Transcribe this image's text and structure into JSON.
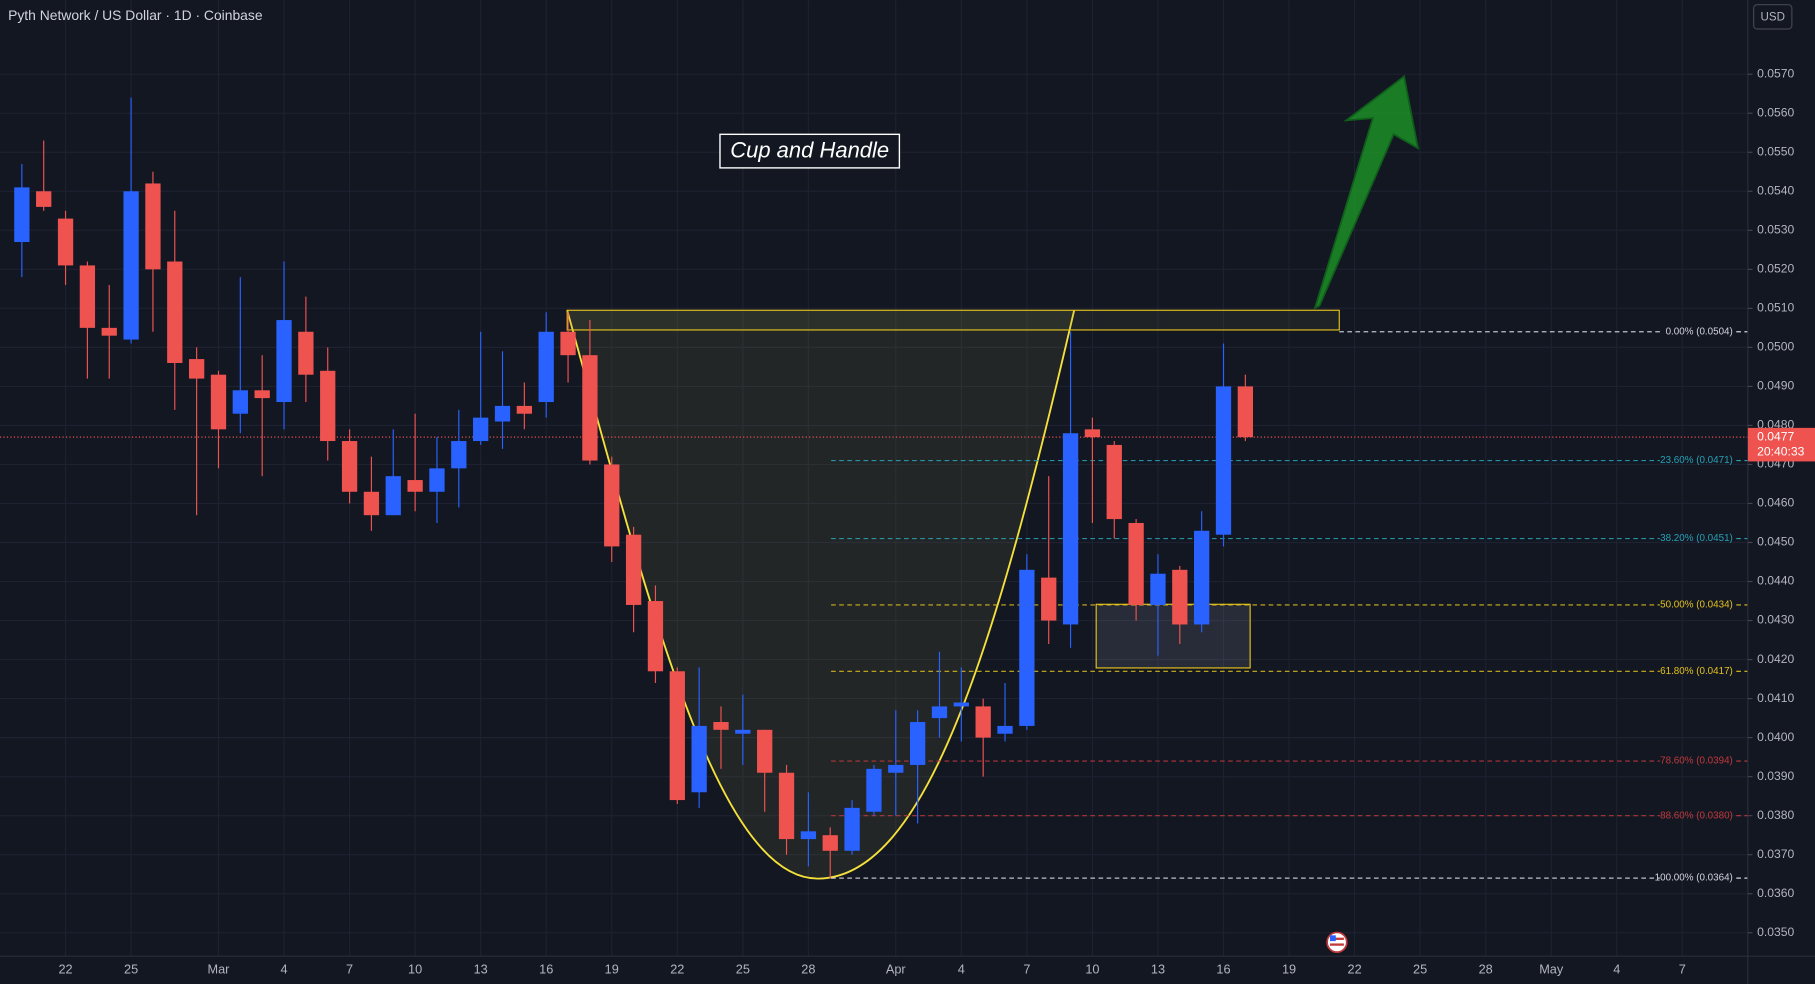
{
  "chart_data": {
    "type": "candlestick",
    "title": "Pyth Network / US Dollar · 1D · Coinbase",
    "currency": "USD",
    "annotation": "Cup and Handle",
    "up_color": "#2962ff",
    "down_color": "#ef5350",
    "grid": true,
    "x": [
      "02-20",
      "02-21",
      "02-22",
      "02-23",
      "02-24",
      "02-25",
      "02-26",
      "02-27",
      "02-28",
      "03-01",
      "03-02",
      "03-03",
      "03-04",
      "03-05",
      "03-06",
      "03-07",
      "03-08",
      "03-09",
      "03-10",
      "03-11",
      "03-12",
      "03-13",
      "03-14",
      "03-15",
      "03-16",
      "03-17",
      "03-18",
      "03-19",
      "03-20",
      "03-21",
      "03-22",
      "03-23",
      "03-24",
      "03-25",
      "03-26",
      "03-27",
      "03-28",
      "03-29",
      "03-30",
      "03-31",
      "04-01",
      "04-02",
      "04-03",
      "04-04",
      "04-05",
      "04-06",
      "04-07",
      "04-08",
      "04-09",
      "04-10",
      "04-11",
      "04-12",
      "04-13",
      "04-14",
      "04-15",
      "04-16",
      "04-17"
    ],
    "open": [
      0.0527,
      0.054,
      0.0533,
      0.0521,
      0.0505,
      0.0502,
      0.0542,
      0.0522,
      0.0497,
      0.0493,
      0.0483,
      0.0489,
      0.0486,
      0.0504,
      0.0494,
      0.0476,
      0.0463,
      0.0457,
      0.0466,
      0.0463,
      0.0469,
      0.0476,
      0.0481,
      0.0485,
      0.0486,
      0.0504,
      0.0498,
      0.047,
      0.0452,
      0.0435,
      0.0417,
      0.0386,
      0.0404,
      0.0401,
      0.0402,
      0.0391,
      0.0374,
      0.0375,
      0.0371,
      0.0381,
      0.0391,
      0.0393,
      0.0405,
      0.0408,
      0.0408,
      0.0401,
      0.0403,
      0.0441,
      0.0429,
      0.0479,
      0.0475,
      0.0455,
      0.0434,
      0.0443,
      0.0429,
      0.0452,
      0.049
    ],
    "high": [
      0.0547,
      0.0553,
      0.0535,
      0.0522,
      0.0516,
      0.0564,
      0.0545,
      0.0535,
      0.05,
      0.0494,
      0.0518,
      0.0498,
      0.0522,
      0.0513,
      0.05,
      0.0479,
      0.0472,
      0.0479,
      0.0483,
      0.0477,
      0.0484,
      0.0504,
      0.0499,
      0.0491,
      0.0509,
      0.0509,
      0.0507,
      0.0472,
      0.0454,
      0.0439,
      0.0418,
      0.0418,
      0.0408,
      0.0411,
      0.0402,
      0.0393,
      0.0386,
      0.0377,
      0.0384,
      0.0393,
      0.0407,
      0.0407,
      0.0422,
      0.0418,
      0.041,
      0.0414,
      0.0447,
      0.0467,
      0.0504,
      0.0482,
      0.0476,
      0.0456,
      0.0447,
      0.0444,
      0.0458,
      0.0501,
      0.0493
    ],
    "low": [
      0.0518,
      0.0535,
      0.0516,
      0.0492,
      0.0492,
      0.0501,
      0.0504,
      0.0484,
      0.0457,
      0.0469,
      0.0478,
      0.0467,
      0.0479,
      0.0486,
      0.0471,
      0.046,
      0.0453,
      0.0457,
      0.0458,
      0.0455,
      0.0459,
      0.0475,
      0.0474,
      0.0479,
      0.0482,
      0.0491,
      0.047,
      0.0445,
      0.0427,
      0.0414,
      0.0383,
      0.0382,
      0.0392,
      0.0393,
      0.0381,
      0.037,
      0.0367,
      0.0364,
      0.037,
      0.038,
      0.038,
      0.0378,
      0.04,
      0.0399,
      0.039,
      0.0399,
      0.0402,
      0.0424,
      0.0423,
      0.0455,
      0.0451,
      0.043,
      0.0421,
      0.0424,
      0.0427,
      0.0449,
      0.0476
    ],
    "close": [
      0.0541,
      0.0536,
      0.0521,
      0.0505,
      0.0503,
      0.054,
      0.052,
      0.0496,
      0.0492,
      0.0479,
      0.0489,
      0.0487,
      0.0507,
      0.0493,
      0.0476,
      0.0463,
      0.0457,
      0.0467,
      0.0463,
      0.0469,
      0.0476,
      0.0482,
      0.0485,
      0.0483,
      0.0504,
      0.0498,
      0.0471,
      0.0449,
      0.0434,
      0.0417,
      0.0384,
      0.0403,
      0.0402,
      0.0402,
      0.0391,
      0.0374,
      0.0376,
      0.0371,
      0.0382,
      0.0392,
      0.0393,
      0.0404,
      0.0408,
      0.0409,
      0.04,
      0.0403,
      0.0443,
      0.043,
      0.0478,
      0.0477,
      0.0456,
      0.0434,
      0.0442,
      0.0429,
      0.0453,
      0.049,
      0.0477
    ],
    "xlim": [
      "02-19",
      "05-10"
    ],
    "xticks": [
      {
        "value": "02-22",
        "label": "22"
      },
      {
        "value": "02-25",
        "label": "25"
      },
      {
        "value": "03-01",
        "label": "Mar"
      },
      {
        "value": "03-04",
        "label": "4"
      },
      {
        "value": "03-07",
        "label": "7"
      },
      {
        "value": "03-10",
        "label": "10"
      },
      {
        "value": "03-13",
        "label": "13"
      },
      {
        "value": "03-16",
        "label": "16"
      },
      {
        "value": "03-19",
        "label": "19"
      },
      {
        "value": "03-22",
        "label": "22"
      },
      {
        "value": "03-25",
        "label": "25"
      },
      {
        "value": "03-28",
        "label": "28"
      },
      {
        "value": "04-01",
        "label": "Apr"
      },
      {
        "value": "04-04",
        "label": "4"
      },
      {
        "value": "04-07",
        "label": "7"
      },
      {
        "value": "04-10",
        "label": "10"
      },
      {
        "value": "04-13",
        "label": "13"
      },
      {
        "value": "04-16",
        "label": "16"
      },
      {
        "value": "04-19",
        "label": "19"
      },
      {
        "value": "04-22",
        "label": "22"
      },
      {
        "value": "04-25",
        "label": "25"
      },
      {
        "value": "04-28",
        "label": "28"
      },
      {
        "value": "05-01",
        "label": "May"
      },
      {
        "value": "05-04",
        "label": "4"
      },
      {
        "value": "05-07",
        "label": "7"
      }
    ],
    "ylim": [
      0.0344,
      0.0589
    ],
    "yticks": [
      {
        "value": 0.035,
        "label": "0.0350"
      },
      {
        "value": 0.036,
        "label": "0.0360"
      },
      {
        "value": 0.037,
        "label": "0.0370"
      },
      {
        "value": 0.038,
        "label": "0.0380"
      },
      {
        "value": 0.039,
        "label": "0.0390"
      },
      {
        "value": 0.04,
        "label": "0.0400"
      },
      {
        "value": 0.041,
        "label": "0.0410"
      },
      {
        "value": 0.042,
        "label": "0.0420"
      },
      {
        "value": 0.043,
        "label": "0.0430"
      },
      {
        "value": 0.044,
        "label": "0.0440"
      },
      {
        "value": 0.045,
        "label": "0.0450"
      },
      {
        "value": 0.046,
        "label": "0.0460"
      },
      {
        "value": 0.047,
        "label": "0.0470"
      },
      {
        "value": 0.048,
        "label": "0.0480"
      },
      {
        "value": 0.049,
        "label": "0.0490"
      },
      {
        "value": 0.05,
        "label": "0.0500"
      },
      {
        "value": 0.051,
        "label": "0.0510"
      },
      {
        "value": 0.052,
        "label": "0.0520"
      },
      {
        "value": 0.053,
        "label": "0.0530"
      },
      {
        "value": 0.054,
        "label": "0.0540"
      },
      {
        "value": 0.055,
        "label": "0.0550"
      },
      {
        "value": 0.056,
        "label": "0.0560"
      },
      {
        "value": 0.057,
        "label": "0.0570"
      }
    ],
    "last_price": 0.0477,
    "countdown": "20:40:33",
    "fib_levels": [
      {
        "label": "0.00% (0.0504)",
        "value": 0.0504,
        "color": "#d1d4dc"
      },
      {
        "label": "23.60% (0.0471)",
        "value": 0.0471,
        "color": "#26a0b5"
      },
      {
        "label": "38.20% (0.0451)",
        "value": 0.0451,
        "color": "#26a0b5"
      },
      {
        "label": "50.00% (0.0434)",
        "value": 0.0434,
        "color": "#e3c21c"
      },
      {
        "label": "61.80% (0.0417)",
        "value": 0.0417,
        "color": "#e3c21c"
      },
      {
        "label": "78.60% (0.0394)",
        "value": 0.0394,
        "color": "#c0393b"
      },
      {
        "label": "88.60% (0.0380)",
        "value": 0.038,
        "color": "#c0393b"
      },
      {
        "label": "100.00% (0.0364)",
        "value": 0.0364,
        "color": "#d1d4dc"
      }
    ]
  }
}
